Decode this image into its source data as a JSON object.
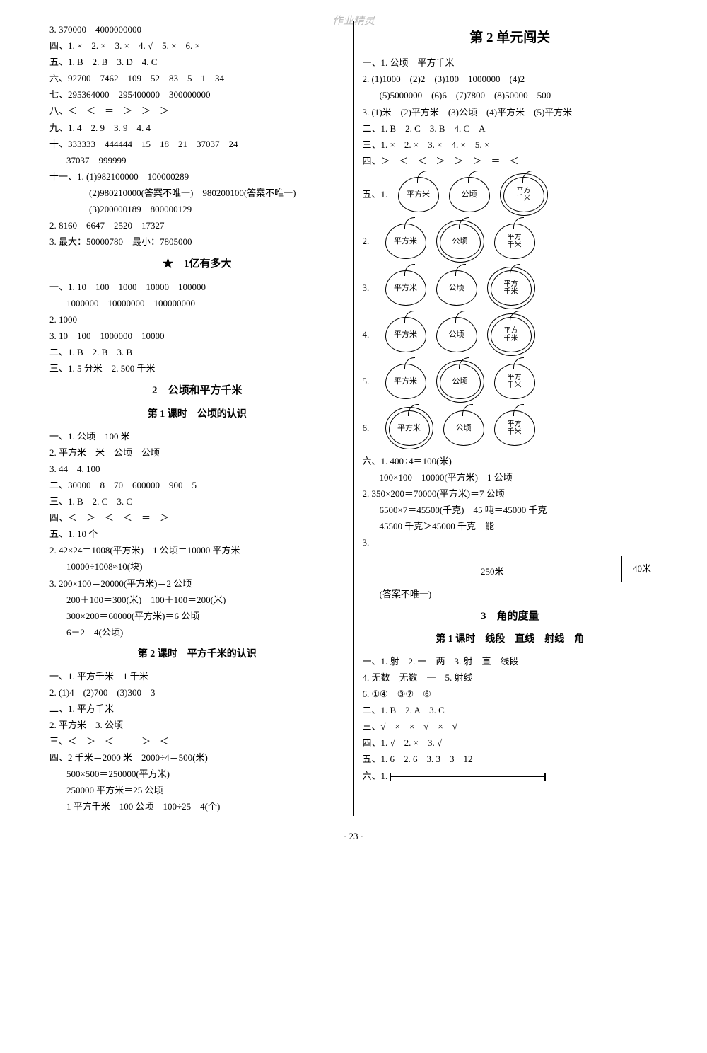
{
  "watermark": "作业精灵",
  "pagenum": "·  23  ·",
  "left": {
    "l1": "3. 370000　4000000000",
    "l2": "四、1. ×　2. ×　3. ×　4. √　5. ×　6. ×",
    "l3": "五、1. B　2. B　3. D　4. C",
    "l4": "六、92700　7462　109　52　83　5　1　34",
    "l5": "七、295364000　295400000　300000000",
    "l6": "八、＜　＜　＝　＞　＞　＞",
    "l7": "九、1. 4　2. 9　3. 9　4. 4",
    "l8": "十、333333　444444　15　18　21　37037　24",
    "l8b": "37037　999999",
    "l9": "十一、1. (1)982100000　100000289",
    "l9b": "(2)980210000(答案不唯一)　980200100(答案不唯一)",
    "l9c": "(3)200000189　800000129",
    "l10": "2. 8160　6647　2520　17327",
    "l11": "3. 最大：50000780　最小：7805000",
    "h1": "★　1亿有多大",
    "a1": "一、1. 10　100　1000　10000　100000",
    "a1b": "1000000　10000000　100000000",
    "a2": "2. 1000",
    "a3": "3. 10　100　1000000　10000",
    "a4": "二、1. B　2. B　3. B",
    "a5": "三、1. 5 分米　2. 500 千米",
    "h2": "2　公顷和平方千米",
    "h3": "第 1 课时　公顷的认识",
    "b1": "一、1. 公顷　100 米",
    "b2": "2. 平方米　米　公顷　公顷",
    "b3": "3. 44　4. 100",
    "b4": "二、30000　8　70　600000　900　5",
    "b5": "三、1. B　2. C　3. C",
    "b6": "四、＜　＞　＜　＜　＝　＞",
    "b7": "五、1. 10 个",
    "b8": "2. 42×24＝1008(平方米)　1 公顷＝10000 平方米",
    "b8b": "10000÷1008≈10(块)",
    "b9": "3. 200×100＝20000(平方米)＝2 公顷",
    "b9b": "200＋100＝300(米)　100＋100＝200(米)",
    "b9c": "300×200＝60000(平方米)＝6 公顷",
    "b9d": "6－2＝4(公顷)",
    "h4": "第 2 课时　平方千米的认识",
    "c1": "一、1. 平方千米　1 千米",
    "c2": "2. (1)4　(2)700　(3)300　3",
    "c3": "二、1. 平方千米",
    "c4": "2. 平方米　3. 公顷",
    "c5": "三、＜　＞　＜　＝　＞　＜",
    "c6": "四、2 千米＝2000 米　2000÷4＝500(米)",
    "c6b": "500×500＝250000(平方米)",
    "c6c": "250000 平方米＝25 公顷",
    "c6d": "1 平方千米＝100 公顷　100÷25＝4(个)"
  },
  "right": {
    "h1": "第 2 单元闯关",
    "r1": "一、1. 公顷　平方千米",
    "r2": "2. (1)1000　(2)2　(3)100　1000000　(4)2",
    "r2b": "(5)5000000　(6)6　(7)7800　(8)50000　500",
    "r3": "3. (1)米　(2)平方米　(3)公顷　(4)平方米　(5)平方米",
    "r4": "二、1. B　2. C　3. B　4. C　A",
    "r5": "三、1. ×　2. ×　3. ×　4. ×　5. ×",
    "r6": "四、＞　＜　＜　＞　＞　＞　＝　＜",
    "five": "五、1.",
    "apples": {
      "labels": [
        "平方米",
        "公顷",
        "平方\n千米"
      ],
      "rows": [
        {
          "n": "1.",
          "circ": 2
        },
        {
          "n": "2.",
          "circ": 1
        },
        {
          "n": "3.",
          "circ": 2
        },
        {
          "n": "4.",
          "circ": 2
        },
        {
          "n": "5.",
          "circ": 1
        },
        {
          "n": "6.",
          "circ": 0
        }
      ]
    },
    "r7": "六、1. 400÷4＝100(米)",
    "r7b": "100×100＝10000(平方米)＝1 公顷",
    "r8": "2. 350×200＝70000(平方米)＝7 公顷",
    "r8b": "6500×7＝45500(千克)　45 吨＝45000 千克",
    "r8c": "45500 千克＞45000 千克　能",
    "r9": "3.",
    "rect_label": "250米",
    "rect_right": "40米",
    "r10": "(答案不唯一)",
    "h2": "3　角的度量",
    "h3": "第 1 课时　线段　直线　射线　角",
    "d1": "一、1. 射　2. 一　两　3. 射　直　线段",
    "d2": "4. 无数　无数　一　5. 射线",
    "d3": "6. ①④　③⑦　⑥",
    "d4": "二、1. B　2. A　3. C",
    "d5": "三、√　×　×　√　×　√",
    "d6": "四、1. √　2. ×　3. √",
    "d7": "五、1. 6　2. 6　3. 3　3　12",
    "d8": "六、1."
  }
}
